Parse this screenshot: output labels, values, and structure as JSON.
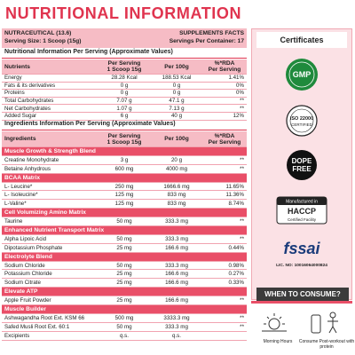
{
  "title": "NUTRITIONAL INFORMATION",
  "header": {
    "product": "NUTRACEUTICAL (13.6)",
    "facts": "SUPPLEMENTS FACTS",
    "serving_size": "Serving Size: 1 Scoop (15g)",
    "servings": "Servings Per Container: 17"
  },
  "nutrition": {
    "caption": "Nutritional Information Per Serving (Approximate Values)",
    "columns": [
      [
        "Nutrients"
      ],
      [
        "Per Serving",
        "1 Scoop 15g"
      ],
      [
        "Per 100g"
      ],
      [
        "%*RDA",
        "Per Serving"
      ]
    ],
    "rows": [
      [
        "Energy",
        "28.28 Kcal",
        "188.53 Kcal",
        "1.41%"
      ],
      [
        "Fats & its derivatives",
        "0 g",
        "0 g",
        "0%"
      ],
      [
        "Proteins",
        "0 g",
        "0 g",
        "0%"
      ],
      [
        "Total Carbohydrates",
        "7.07 g",
        "47.1 g",
        "**"
      ],
      [
        "Net Carbohydrates",
        "1.07 g",
        "7.13 g",
        "**"
      ],
      [
        "Added Sugar",
        "6 g",
        "40 g",
        "12%"
      ]
    ]
  },
  "ingredients": {
    "caption": "Ingredients Information Per Serving (Approximate Values)",
    "columns": [
      [
        "Ingredients"
      ],
      [
        "Per Serving",
        "1 Scoop 15g"
      ],
      [
        "Per 100g"
      ],
      [
        "%*RDA",
        "Per Serving"
      ]
    ],
    "sections": [
      {
        "name": "Muscle Growth & Strength Blend",
        "rows": [
          [
            "Creatine Monohydrate",
            "3 g",
            "20 g",
            "**"
          ],
          [
            "Betaine Anhydrous",
            "600 mg",
            "4000 mg",
            "**"
          ]
        ]
      },
      {
        "name": "BCAA Matrix",
        "rows": [
          [
            "L- Leucine*",
            "250 mg",
            "1666.6 mg",
            "11.65%"
          ],
          [
            "L- Isoleucine*",
            "125 mg",
            "833 mg",
            "11.36%"
          ],
          [
            "L-Valine*",
            "125 mg",
            "833 mg",
            "8.74%"
          ]
        ]
      },
      {
        "name": "Cell Volumizing Amino Matrix",
        "rows": [
          [
            "Taurine",
            "50 mg",
            "333.3 mg",
            "**"
          ]
        ]
      },
      {
        "name": "Enhanced Nutrient Transport Matrix",
        "rows": [
          [
            "Alpha Lipoic Acid",
            "50 mg",
            "333.3 mg",
            "**"
          ],
          [
            "Dipotassium Phosphate",
            "25 mg",
            "166.6 mg",
            "0.44%"
          ]
        ]
      },
      {
        "name": "Electrolyte Blend",
        "rows": [
          [
            "Sodium Chloride",
            "50 mg",
            "333.3 mg",
            "0.98%"
          ],
          [
            "Potassium Chloride",
            "25 mg",
            "166.6 mg",
            "0.27%"
          ],
          [
            "Sodium Citrate",
            "25 mg",
            "166.6 mg",
            "0.33%"
          ]
        ]
      },
      {
        "name": "Elevate ATP",
        "rows": [
          [
            "Apple Fruit Powder",
            "25 mg",
            "166.6 mg",
            "**"
          ]
        ]
      },
      {
        "name": "Muscle Builder",
        "rows": [
          [
            "Ashwagandha Root Ext. KSM 66",
            "500 mg",
            "3333.3 mg",
            "**"
          ],
          [
            "Safed Musli Root Ext. 60:1",
            "50 mg",
            "333.3 mg",
            "**"
          ],
          [
            "Excipients",
            "q.s.",
            "q.s.",
            ""
          ]
        ]
      }
    ]
  },
  "certificates": {
    "title": "Certificates",
    "badges": [
      "GMP",
      "ISO 22000",
      "CERTIFIED",
      "DOPE",
      "FREE",
      "Manufactured in",
      "HACCP",
      "Certified Facility",
      "fssai",
      "LIC. NO: 10016064000824"
    ]
  },
  "consume": {
    "title": "WHEN TO CONSUME?",
    "items": [
      "Morning Hours",
      "Consume Post-workout with protein"
    ]
  }
}
